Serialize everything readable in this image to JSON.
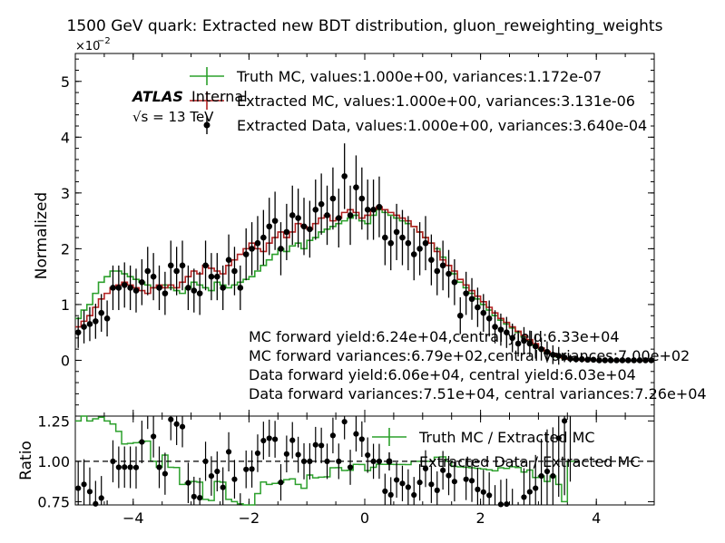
{
  "chart_data": [
    {
      "type": "step+scatter",
      "title": "1500 GeV quark: Extracted new BDT distribution, gluon_reweighting_weights",
      "ylabel": "Normalized",
      "y_scale_label": "×10",
      "y_scale_exp": "−2",
      "xlim": [
        -5,
        5
      ],
      "ylim": [
        -1,
        5.5
      ],
      "yticks": [
        "0",
        "1",
        "2",
        "3",
        "4",
        "5"
      ],
      "atlas_label": "ATLAS",
      "atlas_sub": "Internal",
      "energy_label": "√s = 13 TeV",
      "legend": [
        "Truth MC, values:1.000e+00, variances:1.172e-07",
        "Extracted MC, values:1.000e+00, variances:3.131e-06",
        "Extracted Data, values:1.000e+00, variances:3.640e-04"
      ],
      "annotations": [
        "MC forward yield:6.24e+04,central yield:6.33e+04",
        "MC forward variances:6.79e+02,central variances:7.00e+02",
        "Data forward yield:6.06e+04, central yield:6.03e+04",
        "Data forward variances:7.51e+04, central variances:7.26e+04"
      ],
      "colors": {
        "truth": "#2ca02c",
        "extracted_mc": "#b22222",
        "data": "#000000"
      },
      "bins": {
        "start": -5,
        "width": 0.1
      },
      "truth_mc": [
        0.75,
        0.9,
        1.0,
        1.2,
        1.4,
        1.5,
        1.6,
        1.6,
        1.55,
        1.5,
        1.45,
        1.4,
        1.35,
        1.3,
        1.3,
        1.35,
        1.3,
        1.25,
        1.2,
        1.3,
        1.4,
        1.35,
        1.3,
        1.25,
        1.4,
        1.35,
        1.3,
        1.35,
        1.4,
        1.45,
        1.5,
        1.6,
        1.7,
        1.8,
        1.9,
        2.0,
        1.95,
        2.05,
        2.1,
        2.0,
        2.15,
        2.2,
        2.3,
        2.35,
        2.4,
        2.45,
        2.5,
        2.55,
        2.6,
        2.5,
        2.45,
        2.6,
        2.7,
        2.65,
        2.6,
        2.55,
        2.5,
        2.45,
        2.4,
        2.3,
        2.2,
        2.1,
        2.0,
        1.85,
        1.7,
        1.55,
        1.4,
        1.3,
        1.2,
        1.1,
        1.0,
        0.9,
        0.8,
        0.72,
        0.65,
        0.58,
        0.5,
        0.42,
        0.35,
        0.27,
        0.2,
        0.14,
        0.1,
        0.06,
        0.03,
        0.02,
        0.01,
        0.01,
        0.005,
        0.0,
        0.0,
        0.0,
        0.0,
        0.0,
        0.0,
        0.0,
        0.0,
        0.0,
        0.0,
        0.0
      ],
      "extracted_mc": [
        0.6,
        0.7,
        0.8,
        0.95,
        1.1,
        1.2,
        1.3,
        1.35,
        1.4,
        1.35,
        1.3,
        1.25,
        1.2,
        1.3,
        1.35,
        1.3,
        1.35,
        1.3,
        1.4,
        1.5,
        1.6,
        1.55,
        1.7,
        1.65,
        1.6,
        1.55,
        1.7,
        1.8,
        1.9,
        2.0,
        2.1,
        2.0,
        1.95,
        2.1,
        2.2,
        2.3,
        2.2,
        2.3,
        2.45,
        2.4,
        2.35,
        2.45,
        2.55,
        2.6,
        2.5,
        2.55,
        2.65,
        2.7,
        2.65,
        2.55,
        2.6,
        2.7,
        2.75,
        2.7,
        2.65,
        2.6,
        2.55,
        2.5,
        2.4,
        2.3,
        2.2,
        2.1,
        1.95,
        1.8,
        1.7,
        1.6,
        1.45,
        1.35,
        1.25,
        1.15,
        1.05,
        0.95,
        0.85,
        0.75,
        0.68,
        0.6,
        0.52,
        0.45,
        0.37,
        0.3,
        0.22,
        0.16,
        0.11,
        0.07,
        0.04,
        0.02,
        0.01,
        0.005,
        0.0,
        0.0,
        0.0,
        0.0,
        0.0,
        0.0,
        0.0,
        0.0,
        0.0,
        0.0,
        0.0,
        0.0
      ],
      "data_values": [
        0.5,
        0.6,
        0.65,
        0.7,
        0.85,
        0.75,
        1.3,
        1.3,
        1.35,
        1.3,
        1.25,
        1.4,
        1.6,
        1.5,
        1.3,
        1.2,
        1.7,
        1.6,
        1.7,
        1.3,
        1.25,
        1.2,
        1.7,
        1.5,
        1.5,
        1.3,
        1.8,
        1.6,
        1.3,
        1.9,
        2.0,
        2.1,
        2.2,
        2.4,
        2.5,
        2.0,
        2.3,
        2.6,
        2.55,
        2.4,
        2.35,
        2.7,
        2.8,
        2.6,
        2.9,
        2.55,
        3.3,
        2.6,
        3.1,
        2.9,
        2.7,
        2.7,
        2.75,
        2.2,
        2.1,
        2.3,
        2.2,
        2.1,
        1.9,
        2.0,
        2.1,
        1.8,
        1.6,
        1.7,
        1.55,
        1.4,
        0.8,
        1.2,
        1.1,
        0.95,
        0.85,
        0.75,
        0.6,
        0.55,
        0.5,
        0.4,
        0.3,
        0.35,
        0.3,
        0.25,
        0.2,
        0.15,
        0.1,
        0.08,
        0.05,
        0.03,
        0.02,
        0.02,
        0.01,
        0.01,
        0.0,
        0.0,
        0.0,
        0.0,
        0.0,
        0.0,
        0.0,
        0.0,
        0.0,
        0.0
      ]
    },
    {
      "type": "ratio",
      "ylabel": "Ratio",
      "xlim": [
        -5,
        5
      ],
      "ylim": [
        0.73,
        1.28
      ],
      "yticks": [
        "0.75",
        "1.00",
        "1.25"
      ],
      "xticks": [
        "−4",
        "−2",
        "0",
        "2",
        "4"
      ],
      "legend": [
        "Truth MC / Extracted MC",
        "Extracted Data / Extracted MC"
      ],
      "reference": 1.0
    }
  ]
}
